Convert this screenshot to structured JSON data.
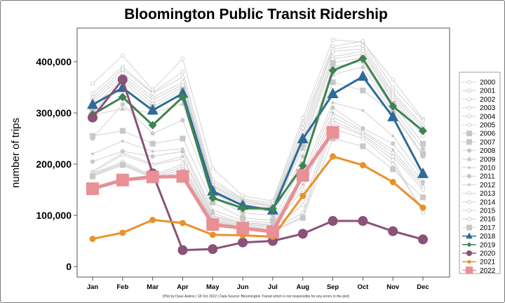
{
  "chart_data": {
    "type": "line",
    "title": "Bloomington Public Transit Ridership",
    "ylabel": "number of trips",
    "xlabel": "",
    "footnote": "[Plot by Dave Askins | 18 Oct 2022 | Data Source: Bloomington Transit which is not responsible for any errors in the plot]",
    "categories": [
      "Jan",
      "Feb",
      "Mar",
      "Apr",
      "May",
      "Jun",
      "Jul",
      "Aug",
      "Sep",
      "Oct",
      "Nov",
      "Dec"
    ],
    "ylim": [
      -20000,
      460000
    ],
    "yticks": [
      0,
      100000,
      200000,
      300000,
      400000
    ],
    "ytick_labels": [
      "0",
      "100,000",
      "200,000",
      "300,000",
      "400,000"
    ],
    "grid": false,
    "legend_position": "right",
    "series": [
      {
        "name": "2000",
        "color": "#c8c8c8",
        "marker": "asterisk",
        "values": [
          357000,
          412000,
          345000,
          406000,
          192000,
          138000,
          128000,
          290000,
          443000,
          438000,
          365000,
          288000
        ]
      },
      {
        "name": "2001",
        "color": "#c8c8c8",
        "marker": "circle-plus",
        "values": [
          338000,
          390000,
          340000,
          380000,
          170000,
          132000,
          124000,
          280000,
          430000,
          440000,
          350000,
          285000
        ]
      },
      {
        "name": "2002",
        "color": "#c8c8c8",
        "marker": "circle-plus",
        "values": [
          330000,
          385000,
          338000,
          370000,
          165000,
          130000,
          120000,
          270000,
          425000,
          432000,
          340000,
          275000
        ]
      },
      {
        "name": "2003",
        "color": "#c8c8c8",
        "marker": "square-x",
        "values": [
          325000,
          378000,
          330000,
          360000,
          160000,
          128000,
          118000,
          262000,
          420000,
          425000,
          335000,
          270000
        ]
      },
      {
        "name": "2004",
        "color": "#c8c8c8",
        "marker": "square-plus",
        "values": [
          320000,
          372000,
          325000,
          355000,
          158000,
          125000,
          116000,
          255000,
          410000,
          420000,
          330000,
          262000
        ]
      },
      {
        "name": "2005",
        "color": "#c8c8c8",
        "marker": "square-x",
        "values": [
          310000,
          368000,
          318000,
          350000,
          155000,
          122000,
          112000,
          245000,
          405000,
          415000,
          325000,
          255000
        ]
      },
      {
        "name": "2006",
        "color": "#c8c8c8",
        "marker": "square",
        "values": [
          302000,
          362000,
          312000,
          345000,
          150000,
          120000,
          110000,
          238000,
          398000,
          408000,
          318000,
          240000
        ]
      },
      {
        "name": "2007",
        "color": "#c8c8c8",
        "marker": "square",
        "values": [
          255000,
          265000,
          240000,
          250000,
          125000,
          95000,
          90000,
          200000,
          360000,
          344000,
          300000,
          220000
        ]
      },
      {
        "name": "2008",
        "color": "#c8c8c8",
        "marker": "circle",
        "values": [
          250000,
          317000,
          260000,
          286000,
          135000,
          105000,
          100000,
          215000,
          390000,
          400000,
          308000,
          230000
        ]
      },
      {
        "name": "2009",
        "color": "#c8c8c8",
        "marker": "triangle",
        "values": [
          296000,
          308000,
          300000,
          318000,
          145000,
          112000,
          108000,
          230000,
          375000,
          390000,
          300000,
          215000
        ]
      },
      {
        "name": "2010",
        "color": "#c8c8c8",
        "marker": "dot",
        "values": [
          220000,
          245000,
          225000,
          230000,
          110000,
          90000,
          85000,
          180000,
          320000,
          305000,
          255000,
          175000
        ]
      },
      {
        "name": "2011",
        "color": "#c8c8c8",
        "marker": "circle",
        "values": [
          205000,
          225000,
          215000,
          225000,
          104000,
          86000,
          82000,
          170000,
          310000,
          270000,
          240000,
          165000
        ]
      },
      {
        "name": "2012",
        "color": "#c8c8c8",
        "marker": "dot",
        "values": [
          186000,
          222000,
          200000,
          215000,
          100000,
          84000,
          80000,
          160000,
          300000,
          265000,
          228000,
          160000
        ]
      },
      {
        "name": "2013",
        "color": "#c8c8c8",
        "marker": "circle-open",
        "values": [
          184000,
          218000,
          198000,
          210000,
          98000,
          82000,
          78000,
          150000,
          292000,
          262000,
          222000,
          155000
        ]
      },
      {
        "name": "2014",
        "color": "#c8c8c8",
        "marker": "square-open",
        "values": [
          182000,
          205000,
          178000,
          200000,
          95000,
          80000,
          75000,
          120000,
          285000,
          258000,
          215000,
          150000
        ]
      },
      {
        "name": "2015",
        "color": "#c8c8c8",
        "marker": "diamond-open",
        "values": [
          180000,
          202000,
          176000,
          195000,
          92000,
          78000,
          72000,
          105000,
          280000,
          255000,
          208000,
          105000
        ]
      },
      {
        "name": "2016",
        "color": "#c8c8c8",
        "marker": "triangle-open",
        "values": [
          178000,
          200000,
          174000,
          190000,
          90000,
          76000,
          70000,
          98000,
          270000,
          250000,
          200000,
          110000
        ]
      },
      {
        "name": "2017",
        "color": "#c8c8c8",
        "marker": "square",
        "values": [
          176000,
          198000,
          172000,
          185000,
          88000,
          74000,
          68000,
          95000,
          250000,
          235000,
          190000,
          135000
        ]
      },
      {
        "name": "2018",
        "color": "#2f6b96",
        "marker": "triangle",
        "values": [
          316000,
          349000,
          305000,
          338000,
          147000,
          119000,
          110000,
          249000,
          337000,
          371000,
          292000,
          181000
        ]
      },
      {
        "name": "2019",
        "color": "#3f8254",
        "marker": "diamond",
        "values": [
          297000,
          331000,
          276000,
          331000,
          134000,
          114000,
          113000,
          197000,
          383000,
          406000,
          313000,
          265000
        ]
      },
      {
        "name": "2020",
        "color": "#8a5278",
        "marker": "circle",
        "values": [
          291000,
          365000,
          182000,
          32000,
          34000,
          47000,
          50000,
          64000,
          89000,
          89000,
          69000,
          53000
        ]
      },
      {
        "name": "2021",
        "color": "#e8922a",
        "marker": "dot",
        "values": [
          54000,
          66000,
          91000,
          85000,
          62000,
          61000,
          58000,
          138000,
          215000,
          198000,
          165000,
          115000
        ]
      },
      {
        "name": "2022",
        "color": "#e89095",
        "marker": "square",
        "values": [
          152000,
          169000,
          175000,
          176000,
          82000,
          75000,
          68000,
          178000,
          262000,
          null,
          null,
          null
        ]
      }
    ]
  }
}
